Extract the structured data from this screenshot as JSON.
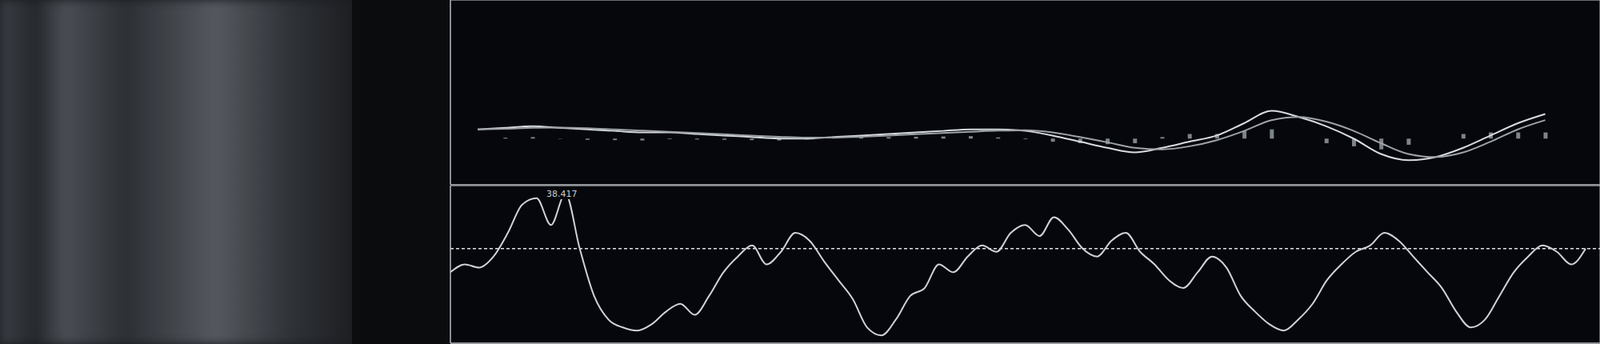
{
  "chart_data": [
    {
      "type": "line",
      "grid": true,
      "tick_labels": false,
      "x": [
        1,
        2,
        3,
        4,
        5,
        6,
        7,
        8,
        9,
        10,
        11,
        12,
        13,
        14,
        15,
        16,
        17,
        18,
        19,
        20,
        21,
        22,
        23,
        24,
        25,
        26,
        27,
        28,
        29,
        30,
        31,
        32,
        33,
        34,
        35,
        36,
        37,
        38,
        39,
        40
      ],
      "xlim": [
        0,
        42
      ],
      "xticks": [
        0,
        2,
        4,
        6,
        8,
        10,
        12,
        14,
        16,
        18,
        20,
        22,
        24,
        26,
        28,
        30,
        32,
        34,
        36,
        38,
        40,
        42
      ],
      "ylim": [
        -1.5,
        4.5
      ],
      "yticks": [
        -1.5,
        -0.5,
        0.5,
        1.5,
        2.5,
        3.5,
        4.5
      ],
      "series": [
        {
          "type": "line",
          "color": "#d8dce0",
          "values": [
            0.3,
            0.35,
            0.4,
            0.35,
            0.3,
            0.25,
            0.2,
            0.2,
            0.15,
            0.1,
            0.05,
            0.0,
            0.0,
            0.05,
            0.1,
            0.15,
            0.2,
            0.25,
            0.3,
            0.3,
            0.25,
            0.1,
            -0.1,
            -0.3,
            -0.45,
            -0.3,
            -0.1,
            0.1,
            0.5,
            0.9,
            0.7,
            0.4,
            0.0,
            -0.5,
            -0.7,
            -0.6,
            -0.3,
            0.1,
            0.5,
            0.8
          ]
        },
        {
          "type": "line",
          "color": "#9ea3a9",
          "values": [
            0.3,
            0.32,
            0.35,
            0.36,
            0.34,
            0.3,
            0.26,
            0.22,
            0.18,
            0.14,
            0.1,
            0.06,
            0.03,
            0.03,
            0.06,
            0.1,
            0.14,
            0.18,
            0.22,
            0.26,
            0.27,
            0.2,
            0.05,
            -0.12,
            -0.3,
            -0.35,
            -0.25,
            -0.05,
            0.25,
            0.6,
            0.7,
            0.55,
            0.25,
            -0.15,
            -0.5,
            -0.6,
            -0.45,
            -0.1,
            0.3,
            0.6
          ]
        },
        {
          "type": "bar",
          "color": "#7d838a",
          "values": [
            0,
            0.03,
            0.05,
            -0.01,
            -0.04,
            -0.05,
            -0.06,
            -0.02,
            -0.03,
            -0.04,
            -0.05,
            -0.06,
            -0.03,
            0.02,
            0.04,
            0.05,
            0.06,
            0.07,
            0.08,
            0.04,
            -0.02,
            -0.1,
            -0.15,
            -0.18,
            -0.15,
            0.05,
            0.15,
            0.15,
            0.25,
            0.3,
            0,
            -0.15,
            -0.25,
            -0.35,
            -0.2,
            0,
            0.15,
            0.2,
            0.2,
            0.2
          ]
        }
      ]
    },
    {
      "type": "line",
      "grid": true,
      "tick_labels": false,
      "annotation": "38.417",
      "reference_line": 60,
      "x": [
        0,
        1,
        2,
        3,
        4,
        5,
        6,
        7,
        8,
        9,
        10,
        11,
        12,
        13,
        14,
        15,
        16,
        17,
        18,
        19,
        20,
        21,
        22,
        23,
        24,
        25,
        26,
        27,
        28,
        29,
        30,
        31,
        32,
        33,
        34,
        35,
        36,
        37,
        38,
        39,
        40,
        41,
        42,
        43,
        44,
        45,
        46,
        47,
        48,
        49,
        50,
        51,
        52,
        53,
        54,
        55,
        56,
        57,
        58,
        59,
        60,
        61,
        62,
        63,
        64,
        65,
        66,
        67,
        68,
        69,
        70,
        71,
        72,
        73,
        74,
        75,
        76,
        77,
        78,
        79
      ],
      "xlim": [
        0,
        80
      ],
      "xticks": [
        0,
        4,
        8,
        12,
        16,
        20,
        24,
        28,
        32,
        36,
        40,
        44,
        48,
        52,
        56,
        60,
        64,
        68,
        72,
        76,
        80
      ],
      "ylim": [
        0,
        100
      ],
      "yticks": [
        0,
        20,
        40,
        60,
        80,
        100
      ],
      "series": [
        {
          "type": "line",
          "color": "#cfd3d7",
          "values": [
            45,
            50,
            48,
            55,
            70,
            88,
            92,
            75,
            95,
            60,
            30,
            15,
            10,
            8,
            12,
            20,
            25,
            18,
            30,
            45,
            55,
            62,
            50,
            58,
            70,
            65,
            52,
            40,
            28,
            10,
            5,
            15,
            30,
            35,
            50,
            45,
            55,
            62,
            58,
            70,
            75,
            68,
            80,
            72,
            60,
            55,
            65,
            70,
            58,
            50,
            40,
            35,
            45,
            55,
            48,
            30,
            20,
            12,
            8,
            15,
            25,
            40,
            50,
            58,
            62,
            70,
            65,
            55,
            45,
            35,
            20,
            10,
            15,
            30,
            45,
            55,
            62,
            58,
            50,
            60
          ]
        }
      ]
    }
  ]
}
